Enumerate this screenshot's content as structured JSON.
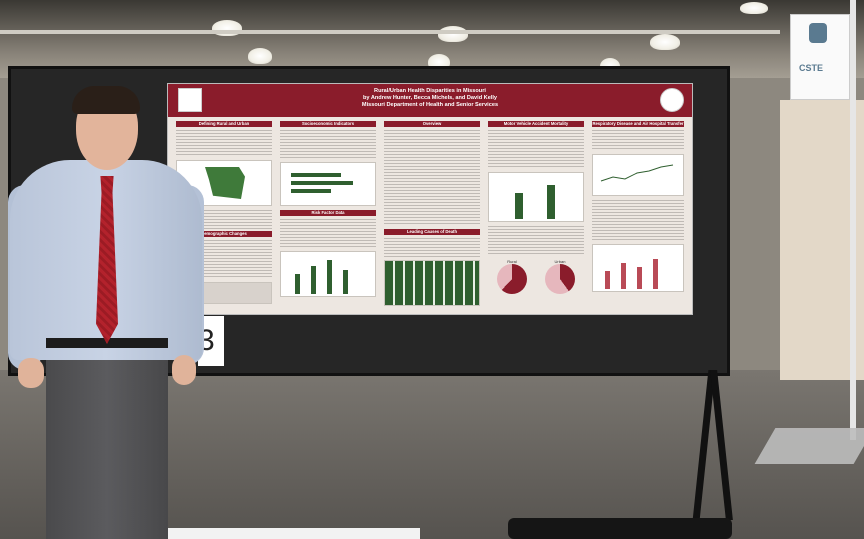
{
  "poster": {
    "title": "Rural/Urban Health Disparities in Missouri",
    "authors": "by Andrew Hunter, Becca Michels, and David Kelly",
    "org": "Missouri Department of Health and Senior Services",
    "sections": {
      "defining": "Defining Rural and Urban",
      "socioeconomic": "Socioeconomic Indicators",
      "overview": "Overview",
      "motor_vehicle": "Motor Vehicle Accident Mortality",
      "respiratory": "Respiratory Disease and Air Hospital Transfer",
      "demographic": "Demographic Changes",
      "risk_factor": "Risk Factor Data",
      "leading_causes": "Leading Causes of Death"
    },
    "pie_labels": [
      "Rural",
      "Urban"
    ],
    "logo_right": "seal"
  },
  "booth": {
    "number": "3"
  },
  "sign": {
    "text": "CSTE"
  },
  "colors": {
    "poster_accent": "#8a1c2b",
    "board": "#262626",
    "tie": "#b3222c"
  }
}
